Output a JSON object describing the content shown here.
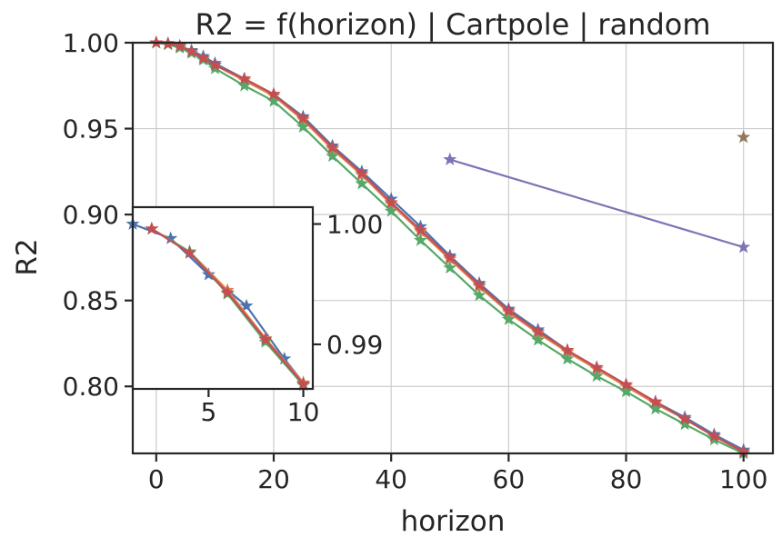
{
  "chart_data": [
    {
      "type": "line",
      "title": "R2 = f(horizon) | Cartpole | random",
      "xlabel": "horizon",
      "ylabel": "R2",
      "xlim": [
        -4,
        105
      ],
      "ylim": [
        0.761,
        1.0
      ],
      "xticks": [
        0,
        20,
        40,
        60,
        80,
        100
      ],
      "xtick_labels": [
        "0",
        "20",
        "40",
        "60",
        "80",
        "100"
      ],
      "yticks": [
        0.8,
        0.85,
        0.9,
        0.95,
        1.0
      ],
      "ytick_labels": [
        "0.80",
        "0.85",
        "0.90",
        "0.95",
        "1.00"
      ],
      "grid": true,
      "marker": "star",
      "series": [
        {
          "name": "series 1",
          "color": "#4c72b0",
          "x": [
            0,
            2,
            4,
            6,
            8,
            10,
            15,
            20,
            25,
            30,
            35,
            40,
            45,
            50,
            55,
            60,
            65,
            70,
            75,
            80,
            85,
            90,
            95,
            100
          ],
          "y": [
            1.0,
            0.9995,
            0.998,
            0.9955,
            0.992,
            0.988,
            0.979,
            0.97,
            0.957,
            0.94,
            0.925,
            0.909,
            0.893,
            0.876,
            0.86,
            0.845,
            0.833,
            0.821,
            0.811,
            0.801,
            0.791,
            0.782,
            0.772,
            0.763
          ]
        },
        {
          "name": "series 2",
          "color": "#dd8452",
          "x": [
            0,
            2,
            4,
            6,
            8,
            10,
            15,
            20,
            25,
            30,
            35,
            40,
            45,
            50,
            55,
            60,
            65,
            70,
            75,
            80,
            85,
            90,
            95,
            100
          ],
          "y": [
            1.0,
            0.9995,
            0.998,
            0.995,
            0.991,
            0.987,
            0.978,
            0.969,
            0.955,
            0.938,
            0.923,
            0.906,
            0.89,
            0.874,
            0.858,
            0.843,
            0.831,
            0.82,
            0.81,
            0.8,
            0.79,
            0.781,
            0.771,
            0.762
          ]
        },
        {
          "name": "series 3",
          "color": "#55a868",
          "x": [
            0,
            2,
            4,
            6,
            8,
            10,
            15,
            20,
            25,
            30,
            35,
            40,
            45,
            50,
            55,
            60,
            65,
            70,
            75,
            80,
            85,
            90,
            95,
            100
          ],
          "y": [
            1.0,
            0.999,
            0.997,
            0.994,
            0.99,
            0.985,
            0.975,
            0.966,
            0.951,
            0.934,
            0.918,
            0.902,
            0.885,
            0.869,
            0.853,
            0.839,
            0.827,
            0.816,
            0.806,
            0.797,
            0.787,
            0.778,
            0.769,
            0.761
          ]
        },
        {
          "name": "series 4",
          "color": "#c44e52",
          "x": [
            0,
            2,
            4,
            6,
            8,
            10,
            15,
            20,
            25,
            30,
            35,
            40,
            45,
            50,
            55,
            60,
            65,
            70,
            75,
            80,
            85,
            90,
            95,
            100
          ],
          "y": [
            1.0,
            0.9995,
            0.998,
            0.995,
            0.991,
            0.987,
            0.979,
            0.97,
            0.956,
            0.939,
            0.924,
            0.907,
            0.891,
            0.875,
            0.859,
            0.844,
            0.832,
            0.821,
            0.811,
            0.801,
            0.791,
            0.781,
            0.771,
            0.762
          ]
        },
        {
          "name": "series 5",
          "color": "#8172b3",
          "x": [
            50,
            100
          ],
          "y": [
            0.932,
            0.881
          ]
        },
        {
          "name": "series 6",
          "color": "#937860",
          "x": [
            100
          ],
          "y": [
            0.945
          ]
        }
      ]
    },
    {
      "type": "line",
      "title": "",
      "xlabel": "",
      "ylabel": "",
      "xlim": [
        1,
        10.5
      ],
      "ylim": [
        0.9863,
        1.0014
      ],
      "xticks": [
        5,
        10
      ],
      "xtick_labels": [
        "5",
        "10"
      ],
      "yticks": [
        0.99,
        1.0
      ],
      "ytick_labels": [
        "0.99",
        "1.00"
      ],
      "ytick_position": "right",
      "grid": false,
      "marker": "star",
      "series": [
        {
          "name": "series 1",
          "color": "#4c72b0",
          "x": [
            1,
            3,
            5,
            7,
            9,
            10
          ],
          "y": [
            1.0,
            0.9988,
            0.9958,
            0.9932,
            0.9888,
            0.9868
          ]
        },
        {
          "name": "series 2",
          "color": "#dd8452",
          "x": [
            2,
            4,
            6,
            8,
            10
          ],
          "y": [
            0.9996,
            0.9977,
            0.9945,
            0.9905,
            0.9868
          ]
        },
        {
          "name": "series 3",
          "color": "#55a868",
          "x": [
            2,
            4,
            6,
            8,
            10
          ],
          "y": [
            0.9996,
            0.9977,
            0.9942,
            0.9902,
            0.9866
          ]
        },
        {
          "name": "series 4",
          "color": "#c44e52",
          "x": [
            2,
            4,
            6,
            8,
            10
          ],
          "y": [
            0.9996,
            0.9976,
            0.9943,
            0.9904,
            0.9867
          ]
        }
      ]
    }
  ]
}
